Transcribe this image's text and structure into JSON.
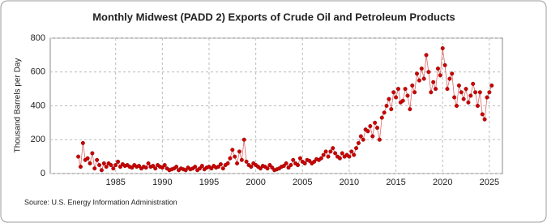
{
  "chart_data": {
    "type": "line",
    "title": "Monthly Midwest (PADD 2) Exports of Crude Oil and Petroleum Products",
    "y_label": "Thousand Barrels per Day",
    "source": "Source: U.S. Energy Information Administration",
    "xlim": [
      1978,
      2026.4
    ],
    "xticks": [
      1985,
      1990,
      1995,
      2000,
      2005,
      2010,
      2015,
      2020,
      2025
    ],
    "ylim": [
      0,
      800
    ],
    "yticks": [
      0,
      200,
      400,
      600,
      800
    ],
    "grid": true,
    "series": [
      {
        "color": "#cc0000",
        "x": [
          1981,
          1981.25,
          1981.5,
          1981.75,
          1982,
          1982.25,
          1982.5,
          1982.75,
          1983,
          1983.25,
          1983.5,
          1983.75,
          1984,
          1984.25,
          1984.5,
          1984.75,
          1985,
          1985.25,
          1985.5,
          1985.75,
          1986,
          1986.25,
          1986.5,
          1986.75,
          1987,
          1987.25,
          1987.5,
          1987.75,
          1988,
          1988.25,
          1988.5,
          1988.75,
          1989,
          1989.25,
          1989.5,
          1989.75,
          1990,
          1990.25,
          1990.5,
          1990.75,
          1991,
          1991.25,
          1991.5,
          1991.75,
          1992,
          1992.25,
          1992.5,
          1992.75,
          1993,
          1993.25,
          1993.5,
          1993.75,
          1994,
          1994.25,
          1994.5,
          1994.75,
          1995,
          1995.25,
          1995.5,
          1995.75,
          1996,
          1996.25,
          1996.5,
          1996.75,
          1997,
          1997.25,
          1997.5,
          1997.75,
          1998,
          1998.25,
          1998.5,
          1998.75,
          1999,
          1999.25,
          1999.5,
          1999.75,
          2000,
          2000.25,
          2000.5,
          2000.75,
          2001,
          2001.25,
          2001.5,
          2001.75,
          2002,
          2002.25,
          2002.5,
          2002.75,
          2003,
          2003.25,
          2003.5,
          2003.75,
          2004,
          2004.25,
          2004.5,
          2004.75,
          2005,
          2005.25,
          2005.5,
          2005.75,
          2006,
          2006.25,
          2006.5,
          2006.75,
          2007,
          2007.25,
          2007.5,
          2007.75,
          2008,
          2008.25,
          2008.5,
          2008.75,
          2009,
          2009.25,
          2009.5,
          2009.75,
          2010,
          2010.25,
          2010.5,
          2010.75,
          2011,
          2011.25,
          2011.5,
          2011.75,
          2012,
          2012.25,
          2012.5,
          2012.75,
          2013,
          2013.25,
          2013.5,
          2013.75,
          2014,
          2014.25,
          2014.5,
          2014.75,
          2015,
          2015.25,
          2015.5,
          2015.75,
          2016,
          2016.25,
          2016.5,
          2016.75,
          2017,
          2017.25,
          2017.5,
          2017.75,
          2018,
          2018.25,
          2018.5,
          2018.75,
          2019,
          2019.25,
          2019.5,
          2019.75,
          2020,
          2020.25,
          2020.5,
          2020.75,
          2021,
          2021.25,
          2021.5,
          2021.75,
          2022,
          2022.25,
          2022.5,
          2022.75,
          2023,
          2023.25,
          2023.5,
          2023.75,
          2024,
          2024.25,
          2024.5,
          2024.75,
          2025,
          2025.25
        ],
        "values": [
          100,
          40,
          180,
          80,
          90,
          60,
          120,
          30,
          80,
          50,
          20,
          60,
          40,
          60,
          50,
          30,
          50,
          70,
          40,
          55,
          45,
          50,
          40,
          35,
          50,
          40,
          45,
          30,
          40,
          35,
          60,
          40,
          45,
          30,
          50,
          40,
          35,
          50,
          30,
          20,
          25,
          30,
          40,
          20,
          30,
          25,
          20,
          35,
          25,
          30,
          40,
          20,
          30,
          45,
          25,
          35,
          40,
          30,
          45,
          35,
          40,
          55,
          30,
          50,
          60,
          90,
          140,
          100,
          60,
          130,
          80,
          200,
          70,
          50,
          40,
          60,
          50,
          40,
          30,
          45,
          40,
          30,
          50,
          35,
          20,
          25,
          30,
          40,
          45,
          60,
          35,
          50,
          80,
          60,
          50,
          90,
          70,
          60,
          80,
          75,
          60,
          70,
          85,
          80,
          90,
          110,
          130,
          100,
          130,
          150,
          120,
          100,
          90,
          120,
          100,
          110,
          100,
          130,
          110,
          150,
          180,
          220,
          200,
          260,
          250,
          280,
          220,
          300,
          270,
          200,
          330,
          360,
          400,
          440,
          380,
          480,
          450,
          500,
          420,
          430,
          500,
          460,
          380,
          520,
          480,
          590,
          550,
          620,
          560,
          700,
          600,
          480,
          540,
          500,
          620,
          580,
          740,
          640,
          500,
          560,
          590,
          450,
          400,
          520,
          480,
          440,
          500,
          420,
          460,
          530,
          480,
          400,
          480,
          350,
          320,
          450,
          480,
          520
        ]
      }
    ]
  }
}
